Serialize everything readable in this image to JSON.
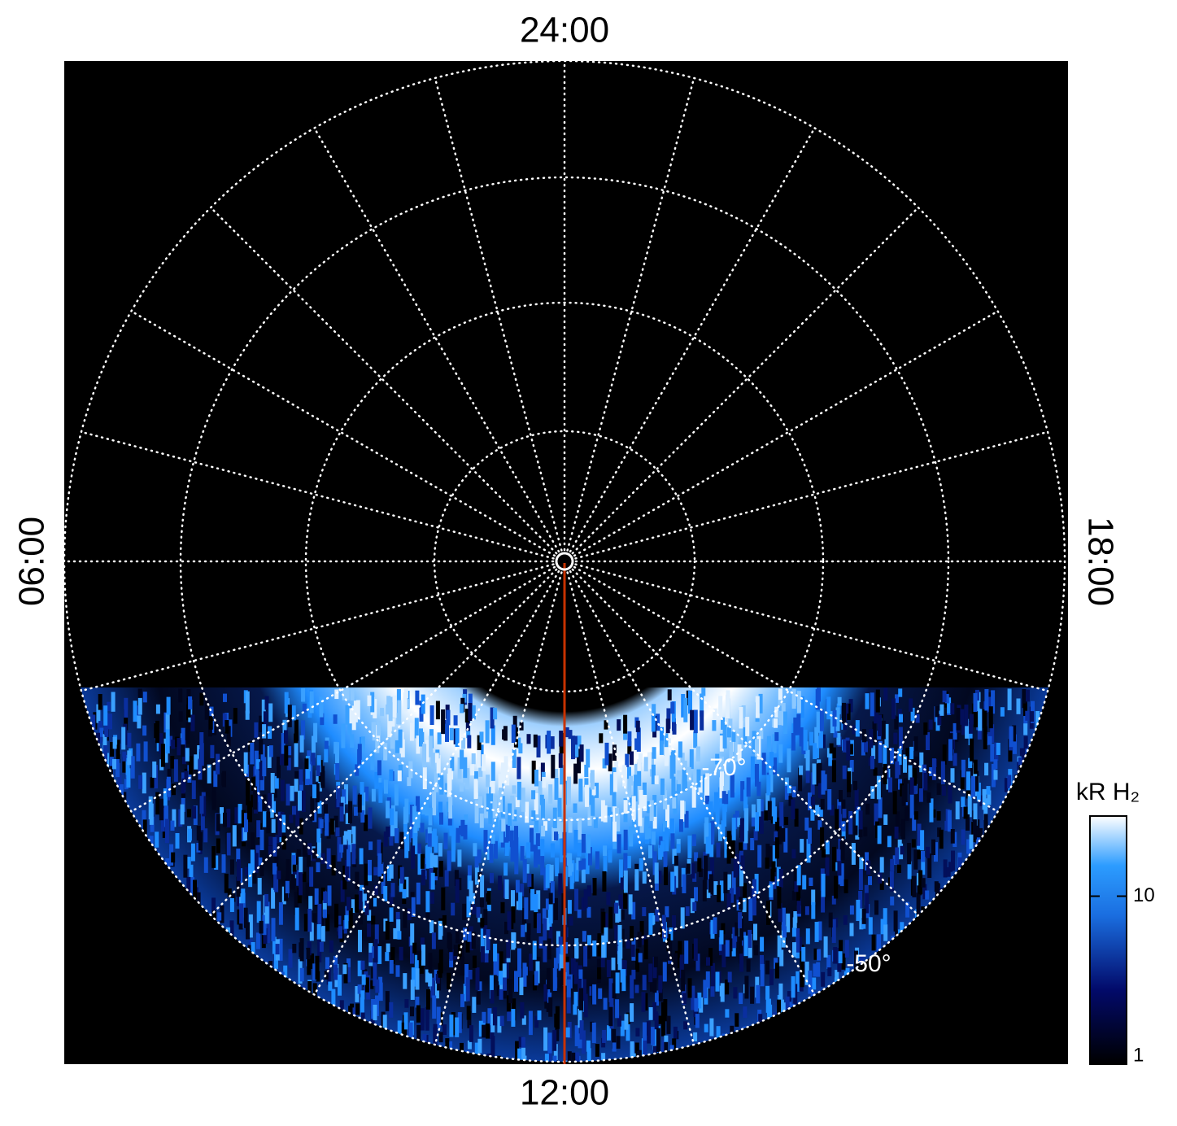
{
  "plot": {
    "time_labels": {
      "top": "24:00",
      "left": "06:00",
      "bottom": "12:00",
      "right": "18:00"
    },
    "latitude_labels": [
      "-70°",
      "-50°"
    ]
  },
  "colorbar": {
    "title": "kR H₂",
    "lim": [
      1,
      30
    ],
    "ticks": [
      1,
      10
    ],
    "log": true
  }
}
